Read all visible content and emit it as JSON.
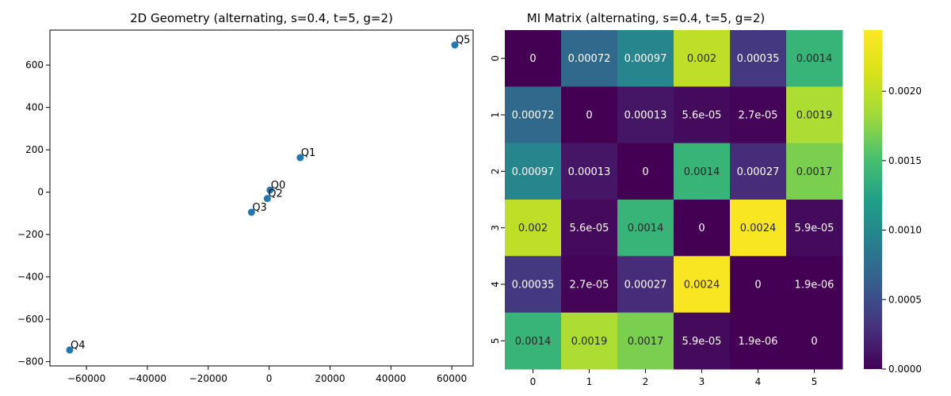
{
  "chart_data": [
    {
      "type": "scatter",
      "title": "2D Geometry (alternating, s=0.4, t=5, g=2)",
      "xlabel": "",
      "ylabel": "",
      "xlim": [
        -72000,
        67000
      ],
      "ylim": [
        -820,
        765
      ],
      "xticks": [
        -60000,
        -40000,
        -20000,
        0,
        20000,
        40000,
        60000
      ],
      "yticks": [
        -800,
        -600,
        -400,
        -200,
        0,
        200,
        400,
        600
      ],
      "grid": false,
      "point_color": "#1f77b4",
      "points": [
        {
          "label": "Q0",
          "x": 300,
          "y": 10
        },
        {
          "label": "Q1",
          "x": 10200,
          "y": 163
        },
        {
          "label": "Q2",
          "x": -600,
          "y": -30
        },
        {
          "label": "Q3",
          "x": -5800,
          "y": -95
        },
        {
          "label": "Q4",
          "x": -65500,
          "y": -745
        },
        {
          "label": "Q5",
          "x": 61000,
          "y": 695
        }
      ]
    },
    {
      "type": "heatmap",
      "title": "MI Matrix (alternating, s=0.4, t=5, g=2)",
      "row_labels": [
        "0",
        "1",
        "2",
        "3",
        "4",
        "5"
      ],
      "col_labels": [
        "0",
        "1",
        "2",
        "3",
        "4",
        "5"
      ],
      "values": [
        [
          0,
          0.00072,
          0.00097,
          0.002,
          0.00035,
          0.0014
        ],
        [
          0.00072,
          0,
          0.00013,
          5.6e-05,
          2.7e-05,
          0.0019
        ],
        [
          0.00097,
          0.00013,
          0,
          0.0014,
          0.00027,
          0.0017
        ],
        [
          0.002,
          5.6e-05,
          0.0014,
          0,
          0.0024,
          5.9e-05
        ],
        [
          0.00035,
          2.7e-05,
          0.00027,
          0.0024,
          0,
          1.9e-06
        ],
        [
          0.0014,
          0.0019,
          0.0017,
          5.9e-05,
          1.9e-06,
          0
        ]
      ],
      "annotations": [
        [
          "0",
          "0.00072",
          "0.00097",
          "0.002",
          "0.00035",
          "0.0014"
        ],
        [
          "0.00072",
          "0",
          "0.00013",
          "5.6e-05",
          "2.7e-05",
          "0.0019"
        ],
        [
          "0.00097",
          "0.00013",
          "0",
          "0.0014",
          "0.00027",
          "0.0017"
        ],
        [
          "0.002",
          "5.6e-05",
          "0.0014",
          "0",
          "0.0024",
          "5.9e-05"
        ],
        [
          "0.00035",
          "2.7e-05",
          "0.00027",
          "0.0024",
          "0",
          "1.9e-06"
        ],
        [
          "0.0014",
          "0.0019",
          "0.0017",
          "5.9e-05",
          "1.9e-06",
          "0"
        ]
      ],
      "colormap": "viridis",
      "vmin": 0,
      "vmax": 0.00244,
      "colorbar_ticks": [
        "0.0000",
        "0.0005",
        "0.0010",
        "0.0015",
        "0.0020"
      ]
    }
  ]
}
